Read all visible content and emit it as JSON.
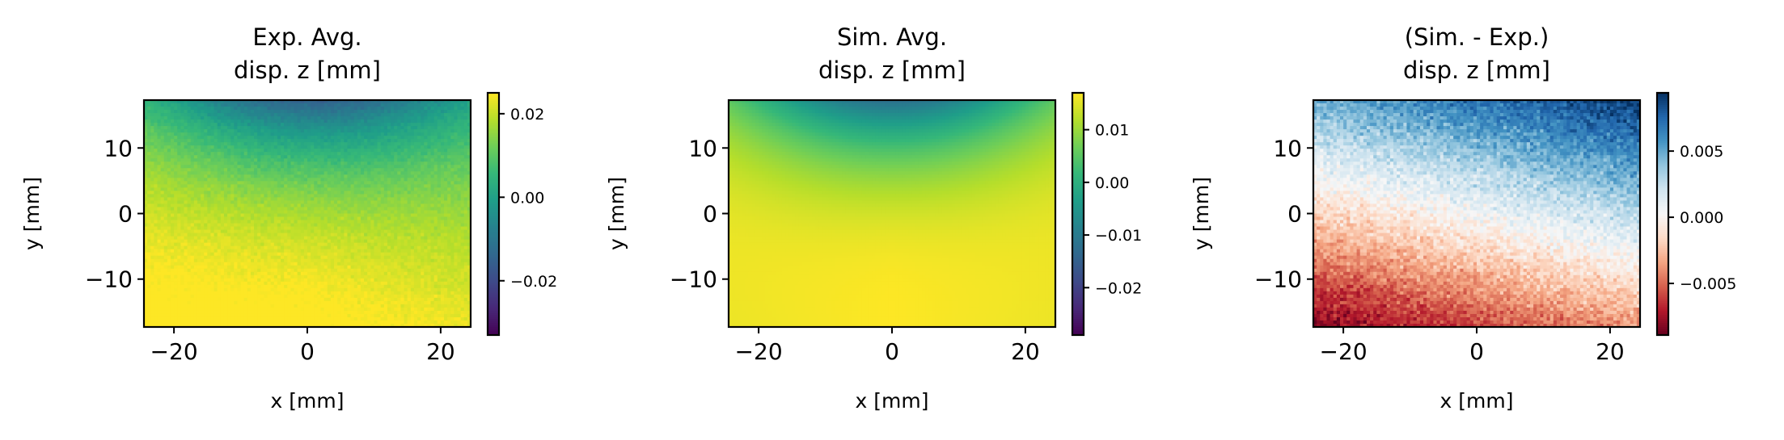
{
  "chart_data": [
    {
      "type": "heatmap",
      "title": [
        "Exp. Avg.",
        "disp. z [mm]"
      ],
      "xlabel": "x [mm]",
      "ylabel": "y [mm]",
      "xlim": [
        -24.5,
        24.5
      ],
      "ylim": [
        -17.3,
        17.3
      ],
      "xticks": [
        -20,
        0,
        20
      ],
      "xtick_labels": [
        "−20",
        "0",
        "20"
      ],
      "yticks": [
        -10,
        0,
        10
      ],
      "ytick_labels": [
        "−10",
        "0",
        "10"
      ],
      "colormap": "viridis",
      "noise": 0.0015,
      "field": "exp",
      "colorbar": {
        "range": [
          -0.033,
          0.025
        ],
        "ticks": [
          -0.02,
          0.0,
          0.02
        ],
        "tick_labels": [
          "−0.02",
          "0.00",
          "0.02"
        ]
      }
    },
    {
      "type": "heatmap",
      "title": [
        "Sim. Avg.",
        "disp. z [mm]"
      ],
      "xlabel": "x [mm]",
      "ylabel": "y [mm]",
      "xlim": [
        -24.5,
        24.5
      ],
      "ylim": [
        -17.3,
        17.3
      ],
      "xticks": [
        -20,
        0,
        20
      ],
      "xtick_labels": [
        "−20",
        "0",
        "20"
      ],
      "yticks": [
        -10,
        0,
        10
      ],
      "ytick_labels": [
        "−10",
        "0",
        "10"
      ],
      "colormap": "viridis",
      "noise": 0,
      "field": "sim",
      "colorbar": {
        "range": [
          -0.029,
          0.017
        ],
        "ticks": [
          -0.02,
          -0.01,
          0.0,
          0.01
        ],
        "tick_labels": [
          "−0.02",
          "−0.01",
          "0.00",
          "0.01"
        ]
      }
    },
    {
      "type": "heatmap",
      "title": [
        "(Sim. - Exp.)",
        "disp. z [mm]"
      ],
      "xlabel": "x [mm]",
      "ylabel": "y [mm]",
      "xlim": [
        -24.5,
        24.5
      ],
      "ylim": [
        -17.3,
        17.3
      ],
      "xticks": [
        -20,
        0,
        20
      ],
      "xtick_labels": [
        "−20",
        "0",
        "20"
      ],
      "yticks": [
        -10,
        0,
        10
      ],
      "ytick_labels": [
        "−10",
        "0",
        "10"
      ],
      "colormap": "RdBu",
      "noise": 0.0012,
      "field": "diff",
      "colorbar": {
        "range": [
          -0.0089,
          0.0094
        ],
        "ticks": [
          -0.005,
          0.0,
          0.005
        ],
        "tick_labels": [
          "−0.005",
          "0.000",
          "0.005"
        ]
      }
    }
  ]
}
